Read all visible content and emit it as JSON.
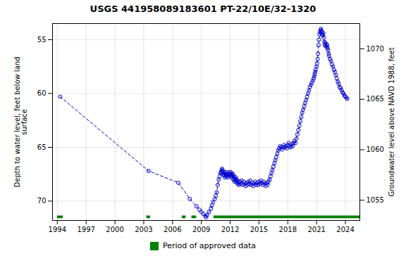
{
  "chart_data": {
    "type": "line",
    "title": "USGS 441958089183601 PT-22/10E/32-1320",
    "ylabel": "Depth to water level, feet below land\nsurface",
    "y2label": "Groundwater level above NAVD 1988, feet",
    "xlim": [
      1993.5,
      2025.5
    ],
    "ylim": [
      71.8,
      53.5
    ],
    "y2lim": [
      1053.0,
      1072.5
    ],
    "xticks": [
      1994,
      1997,
      2000,
      2003,
      2006,
      2009,
      2012,
      2015,
      2018,
      2021,
      2024
    ],
    "yticks": [
      55,
      60,
      65,
      70
    ],
    "y2ticks": [
      1055,
      1060,
      1065,
      1070
    ],
    "grid": true,
    "legend": "bottom",
    "x": [
      1994.3,
      2003.5,
      2006.6,
      2007.8,
      2008.5,
      2008.8,
      2009.0,
      2009.2,
      2009.4,
      2009.5,
      2009.6,
      2009.8,
      2010.0,
      2010.1,
      2010.2,
      2010.4,
      2010.5,
      2010.6,
      2010.7,
      2010.8,
      2010.9,
      2011.0,
      2011.05,
      2011.1,
      2011.15,
      2011.2,
      2011.25,
      2011.3,
      2011.35,
      2011.4,
      2011.45,
      2011.5,
      2011.55,
      2011.6,
      2011.65,
      2011.7,
      2011.75,
      2011.8,
      2011.85,
      2011.9,
      2011.95,
      2012.0,
      2012.05,
      2012.1,
      2012.15,
      2012.2,
      2012.25,
      2012.3,
      2012.35,
      2012.4,
      2012.45,
      2012.5,
      2012.55,
      2012.6,
      2012.65,
      2012.7,
      2012.75,
      2012.8,
      2012.85,
      2012.9,
      2013.0,
      2013.1,
      2013.2,
      2013.3,
      2013.4,
      2013.5,
      2013.6,
      2013.7,
      2013.8,
      2013.9,
      2014.0,
      2014.1,
      2014.2,
      2014.3,
      2014.4,
      2014.5,
      2014.6,
      2014.7,
      2014.8,
      2014.9,
      2015.0,
      2015.1,
      2015.2,
      2015.3,
      2015.4,
      2015.5,
      2015.6,
      2015.7,
      2015.8,
      2015.9,
      2016.0,
      2016.1,
      2016.2,
      2016.3,
      2016.4,
      2016.5,
      2016.6,
      2016.7,
      2016.8,
      2016.9,
      2017.0,
      2017.1,
      2017.2,
      2017.3,
      2017.4,
      2017.5,
      2017.6,
      2017.7,
      2017.8,
      2017.9,
      2018.0,
      2018.1,
      2018.2,
      2018.3,
      2018.4,
      2018.5,
      2018.6,
      2018.7,
      2018.8,
      2018.9,
      2019.0,
      2019.1,
      2019.2,
      2019.3,
      2019.4,
      2019.5,
      2019.6,
      2019.7,
      2019.8,
      2019.9,
      2020.0,
      2020.1,
      2020.2,
      2020.3,
      2020.4,
      2020.5,
      2020.6,
      2020.7,
      2020.75,
      2020.8,
      2020.85,
      2020.9,
      2021.0,
      2021.05,
      2021.1,
      2021.15,
      2021.2,
      2021.25,
      2021.3,
      2021.35,
      2021.4,
      2021.45,
      2021.5,
      2021.55,
      2021.6,
      2021.65,
      2021.7,
      2021.75,
      2021.8,
      2021.85,
      2021.9,
      2021.95,
      2022.0,
      2022.05,
      2022.1,
      2022.15,
      2022.2,
      2022.25,
      2022.3,
      2022.4,
      2022.5,
      2022.6,
      2022.7,
      2022.8,
      2022.9,
      2023.0,
      2023.1,
      2023.2,
      2023.3,
      2023.4,
      2023.5,
      2023.6,
      2023.7,
      2023.8,
      2023.9,
      2024.0,
      2024.1,
      2024.2
    ],
    "series": [
      {
        "color": "#0000cc",
        "line_style": "dashed",
        "marker": "open_circle",
        "values": [
          60.3,
          67.2,
          68.3,
          69.8,
          70.5,
          70.8,
          71.0,
          71.2,
          71.4,
          71.5,
          71.3,
          71.0,
          70.7,
          70.4,
          70.1,
          69.8,
          69.5,
          69.2,
          68.5,
          68.0,
          67.7,
          67.4,
          67.3,
          67.2,
          67.0,
          67.1,
          67.5,
          67.3,
          67.6,
          67.4,
          67.8,
          67.5,
          67.7,
          67.3,
          67.6,
          67.4,
          67.8,
          67.5,
          67.7,
          67.4,
          67.6,
          67.3,
          67.5,
          67.7,
          67.4,
          67.6,
          67.9,
          67.5,
          68.0,
          67.7,
          68.2,
          67.9,
          68.1,
          67.8,
          68.0,
          68.3,
          68.1,
          68.4,
          68.2,
          68.5,
          68.2,
          68.4,
          68.1,
          68.5,
          68.2,
          68.4,
          68.6,
          68.3,
          68.5,
          68.2,
          68.4,
          68.1,
          68.5,
          68.3,
          68.6,
          68.4,
          68.2,
          68.5,
          68.3,
          68.5,
          68.2,
          68.4,
          68.1,
          68.3,
          68.5,
          68.2,
          68.4,
          68.6,
          68.3,
          68.5,
          68.2,
          68.0,
          67.7,
          67.4,
          67.1,
          66.8,
          66.5,
          66.2,
          65.9,
          65.6,
          65.3,
          65.1,
          64.9,
          65.0,
          65.2,
          65.0,
          64.8,
          65.0,
          64.9,
          65.1,
          64.8,
          64.6,
          64.9,
          65.0,
          64.7,
          64.9,
          64.6,
          64.4,
          64.6,
          64.2,
          63.8,
          63.4,
          63.0,
          62.6,
          62.2,
          61.8,
          61.5,
          61.2,
          60.9,
          60.6,
          60.3,
          60.0,
          59.7,
          59.4,
          59.2,
          59.0,
          58.8,
          58.6,
          58.4,
          58.2,
          58.0,
          57.8,
          57.5,
          57.2,
          56.8,
          56.3,
          55.5,
          55.0,
          54.5,
          54.3,
          54.1,
          54.0,
          54.2,
          54.5,
          54.3,
          54.6,
          54.4,
          54.8,
          55.2,
          55.5,
          55.3,
          55.6,
          55.4,
          55.7,
          55.5,
          55.8,
          56.0,
          56.3,
          56.5,
          56.8,
          57.0,
          57.3,
          57.5,
          57.8,
          58.0,
          58.3,
          58.6,
          58.9,
          59.1,
          59.4,
          59.5,
          59.7,
          59.9,
          60.0,
          60.2,
          60.3,
          60.4,
          60.5
        ]
      }
    ],
    "approved_periods": {
      "name": "Period of approved data",
      "color": "#008000",
      "y": 71.5,
      "height": 0.25,
      "ranges": [
        [
          1994.0,
          1994.6
        ],
        [
          2003.3,
          2003.7
        ],
        [
          2007.0,
          2007.4
        ],
        [
          2008.0,
          2008.5
        ],
        [
          2010.3,
          2025.5
        ]
      ]
    }
  }
}
